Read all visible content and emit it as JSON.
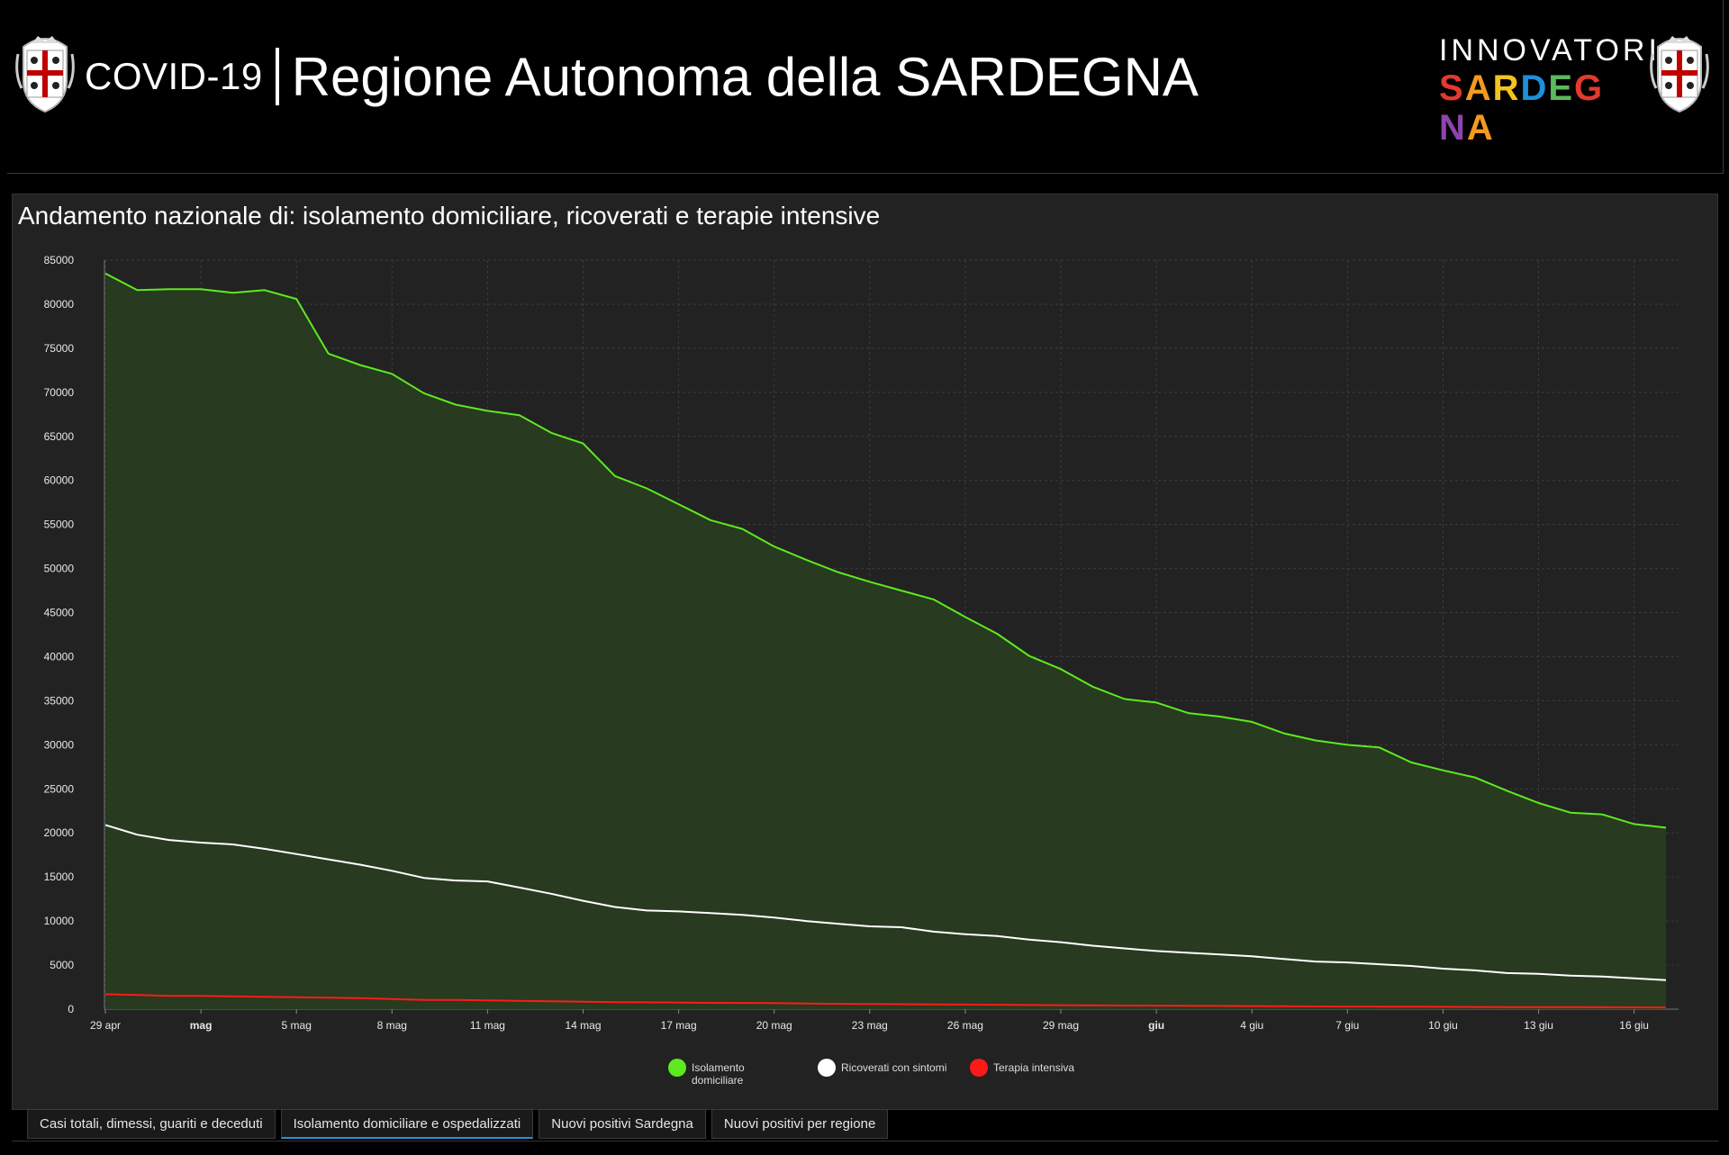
{
  "header": {
    "covid_label": "COVID-19",
    "region_label": "Regione Autonoma della SARDEGNA",
    "innovatori_top": "INNOVATORI",
    "innovatori_bottom": [
      "S",
      "A",
      "R",
      "D",
      "E",
      "G",
      "N",
      "A"
    ],
    "innovatori_colors": [
      "#e23a2e",
      "#f39a1e",
      "#f3c31e",
      "#1f8ed8",
      "#5cb85c",
      "#e23a2e",
      "#8e44ad",
      "#f39a1e"
    ],
    "crest_colors": {
      "cross": "#c00000",
      "field": "#ffffff",
      "outline": "#cccccc"
    }
  },
  "chart_data": {
    "type": "area",
    "title": "Andamento nazionale di: isolamento domiciliare, ricoverati e terapie intensive",
    "ylim": [
      0,
      85000
    ],
    "yticks": [
      0,
      5000,
      10000,
      15000,
      20000,
      25000,
      30000,
      35000,
      40000,
      45000,
      50000,
      55000,
      60000,
      65000,
      70000,
      75000,
      80000,
      85000
    ],
    "xlabels": [
      {
        "i": 0,
        "label": "29 apr",
        "bold": false
      },
      {
        "i": 3,
        "label": "mag",
        "bold": true
      },
      {
        "i": 6,
        "label": "5 mag",
        "bold": false
      },
      {
        "i": 9,
        "label": "8 mag",
        "bold": false
      },
      {
        "i": 12,
        "label": "11 mag",
        "bold": false
      },
      {
        "i": 15,
        "label": "14 mag",
        "bold": false
      },
      {
        "i": 18,
        "label": "17 mag",
        "bold": false
      },
      {
        "i": 21,
        "label": "20 mag",
        "bold": false
      },
      {
        "i": 24,
        "label": "23 mag",
        "bold": false
      },
      {
        "i": 27,
        "label": "26 mag",
        "bold": false
      },
      {
        "i": 30,
        "label": "29 mag",
        "bold": false
      },
      {
        "i": 33,
        "label": "giu",
        "bold": true
      },
      {
        "i": 36,
        "label": "4 giu",
        "bold": false
      },
      {
        "i": 39,
        "label": "7 giu",
        "bold": false
      },
      {
        "i": 42,
        "label": "10 giu",
        "bold": false
      },
      {
        "i": 45,
        "label": "13 giu",
        "bold": false
      },
      {
        "i": 48,
        "label": "16 giu",
        "bold": false
      }
    ],
    "num_days": 50,
    "grid": true,
    "legend_position": "bottom-center",
    "series": [
      {
        "name": "Isolamento domiciliare",
        "color": "#5dea1e",
        "fill": "#283a1f",
        "values": [
          83500,
          81600,
          81700,
          81700,
          81300,
          81600,
          80600,
          74400,
          73100,
          72100,
          69900,
          68600,
          67900,
          67400,
          65400,
          64200,
          60500,
          59100,
          57300,
          55500,
          54500,
          52500,
          51000,
          49600,
          48500,
          47500,
          46500,
          44500,
          42600,
          40100,
          38600,
          36600,
          35200,
          34800,
          33600,
          33200,
          32600,
          31300,
          30500,
          30000,
          29700,
          28000,
          27100,
          26300,
          24800,
          23400,
          22300,
          22100,
          21000,
          20600
        ]
      },
      {
        "name": "Ricoverati con sintomi",
        "color": "#ffffff",
        "values": [
          20900,
          19800,
          19200,
          18900,
          18700,
          18200,
          17600,
          17000,
          16400,
          15700,
          14900,
          14600,
          14500,
          13800,
          13100,
          12300,
          11600,
          11200,
          11100,
          10900,
          10700,
          10400,
          10000,
          9700,
          9400,
          9300,
          8800,
          8500,
          8300,
          7900,
          7600,
          7200,
          6900,
          6600,
          6400,
          6200,
          6000,
          5700,
          5400,
          5300,
          5100,
          4900,
          4600,
          4400,
          4100,
          4000,
          3800,
          3700,
          3500,
          3300
        ]
      },
      {
        "name": "Terapia intensiva",
        "color": "#ff1a1a",
        "values": [
          1700,
          1600,
          1500,
          1500,
          1450,
          1400,
          1350,
          1300,
          1250,
          1150,
          1050,
          1050,
          1000,
          950,
          900,
          850,
          800,
          780,
          760,
          720,
          700,
          680,
          640,
          600,
          580,
          560,
          540,
          520,
          500,
          470,
          450,
          430,
          410,
          400,
          390,
          370,
          350,
          330,
          310,
          300,
          290,
          280,
          270,
          250,
          240,
          230,
          220,
          210,
          200,
          190
        ]
      }
    ]
  },
  "legend": {
    "items": [
      {
        "label_line1": "Isolamento",
        "label_line2": "domiciliare",
        "color": "#5dea1e"
      },
      {
        "label_line1": "Ricoverati con sintomi",
        "label_line2": "",
        "color": "#ffffff"
      },
      {
        "label_line1": "Terapia intensiva",
        "label_line2": "",
        "color": "#ff1a1a"
      }
    ]
  },
  "tabs": [
    {
      "label": "Casi totali, dimessi, guariti e deceduti",
      "active": false
    },
    {
      "label": "Isolamento domiciliare e ospedalizzati",
      "active": true
    },
    {
      "label": "Nuovi positivi Sardegna",
      "active": false
    },
    {
      "label": "Nuovi positivi per regione",
      "active": false
    }
  ]
}
